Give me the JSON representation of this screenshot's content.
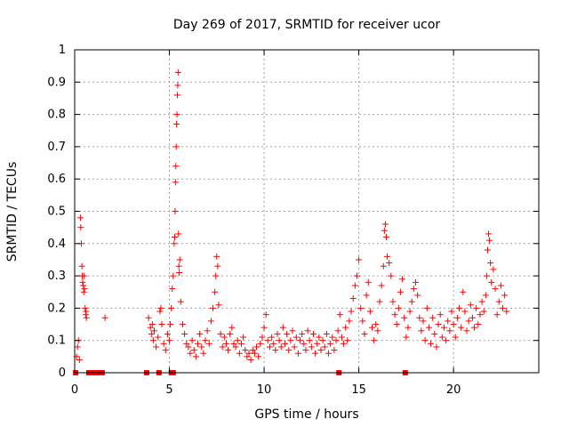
{
  "chart_data": {
    "type": "scatter",
    "title": "Day 269 of 2017, SRMTID for receiver ucor",
    "xlabel": "GPS time / hours",
    "ylabel": "SRMTID / TECUs",
    "xlim": [
      0,
      24.5
    ],
    "ylim": [
      0,
      1
    ],
    "x_ticks": [
      0,
      5,
      10,
      15,
      20
    ],
    "x_tick_labels": [
      "0",
      "5",
      "10",
      "15",
      "20"
    ],
    "y_ticks": [
      0,
      0.1,
      0.2,
      0.3,
      0.4,
      0.5,
      0.6,
      0.7,
      0.8,
      0.9,
      1
    ],
    "y_tick_labels": [
      "0",
      "0.1",
      "0.2",
      "0.3",
      "0.4",
      "0.5",
      "0.6",
      "0.7",
      "0.8",
      "0.9",
      "1"
    ],
    "grid": true,
    "marker": "plus",
    "color": "#ff0000",
    "series": [
      {
        "name": "SRMTID",
        "points": [
          [
            0.1,
            0.05
          ],
          [
            0.15,
            0.08
          ],
          [
            0.2,
            0.1
          ],
          [
            0.25,
            0.04
          ],
          [
            0.3,
            0.48
          ],
          [
            0.32,
            0.45
          ],
          [
            0.35,
            0.4
          ],
          [
            0.38,
            0.33
          ],
          [
            0.4,
            0.3
          ],
          [
            0.42,
            0.28
          ],
          [
            0.45,
            0.27
          ],
          [
            0.48,
            0.25
          ],
          [
            0.5,
            0.3
          ],
          [
            0.52,
            0.26
          ],
          [
            0.55,
            0.2
          ],
          [
            0.58,
            0.18
          ],
          [
            0.6,
            0.19
          ],
          [
            0.62,
            0.17
          ],
          [
            1.6,
            0.17
          ],
          [
            3.9,
            0.17
          ],
          [
            4.0,
            0.14
          ],
          [
            4.05,
            0.12
          ],
          [
            4.1,
            0.15
          ],
          [
            4.15,
            0.1
          ],
          [
            4.2,
            0.13
          ],
          [
            4.3,
            0.08
          ],
          [
            4.4,
            0.11
          ],
          [
            4.5,
            0.19
          ],
          [
            4.55,
            0.2
          ],
          [
            4.6,
            0.15
          ],
          [
            4.7,
            0.09
          ],
          [
            4.8,
            0.07
          ],
          [
            4.9,
            0.12
          ],
          [
            5.0,
            0.1
          ],
          [
            5.05,
            0.15
          ],
          [
            5.1,
            0.2
          ],
          [
            5.15,
            0.26
          ],
          [
            5.2,
            0.3
          ],
          [
            5.25,
            0.4
          ],
          [
            5.28,
            0.42
          ],
          [
            5.3,
            0.5
          ],
          [
            5.32,
            0.59
          ],
          [
            5.34,
            0.64
          ],
          [
            5.36,
            0.7
          ],
          [
            5.38,
            0.77
          ],
          [
            5.4,
            0.8
          ],
          [
            5.42,
            0.86
          ],
          [
            5.44,
            0.89
          ],
          [
            5.46,
            0.93
          ],
          [
            5.48,
            0.43
          ],
          [
            5.5,
            0.33
          ],
          [
            5.52,
            0.31
          ],
          [
            5.55,
            0.35
          ],
          [
            5.6,
            0.22
          ],
          [
            5.7,
            0.15
          ],
          [
            5.8,
            0.12
          ],
          [
            5.9,
            0.09
          ],
          [
            6.0,
            0.08
          ],
          [
            6.1,
            0.06
          ],
          [
            6.2,
            0.1
          ],
          [
            6.3,
            0.07
          ],
          [
            6.4,
            0.05
          ],
          [
            6.5,
            0.09
          ],
          [
            6.6,
            0.12
          ],
          [
            6.7,
            0.08
          ],
          [
            6.8,
            0.06
          ],
          [
            6.9,
            0.1
          ],
          [
            7.0,
            0.13
          ],
          [
            7.1,
            0.09
          ],
          [
            7.2,
            0.16
          ],
          [
            7.3,
            0.2
          ],
          [
            7.4,
            0.25
          ],
          [
            7.45,
            0.3
          ],
          [
            7.5,
            0.36
          ],
          [
            7.55,
            0.33
          ],
          [
            7.6,
            0.21
          ],
          [
            7.7,
            0.12
          ],
          [
            7.8,
            0.08
          ],
          [
            7.9,
            0.11
          ],
          [
            8.0,
            0.09
          ],
          [
            8.1,
            0.07
          ],
          [
            8.2,
            0.12
          ],
          [
            8.3,
            0.14
          ],
          [
            8.4,
            0.09
          ],
          [
            8.5,
            0.08
          ],
          [
            8.6,
            0.1
          ],
          [
            8.7,
            0.06
          ],
          [
            8.8,
            0.09
          ],
          [
            8.9,
            0.11
          ],
          [
            9.0,
            0.07
          ],
          [
            9.1,
            0.05
          ],
          [
            9.2,
            0.06
          ],
          [
            9.3,
            0.04
          ],
          [
            9.4,
            0.07
          ],
          [
            9.5,
            0.06
          ],
          [
            9.6,
            0.08
          ],
          [
            9.7,
            0.05
          ],
          [
            9.8,
            0.09
          ],
          [
            9.9,
            0.11
          ],
          [
            10.0,
            0.14
          ],
          [
            10.1,
            0.18
          ],
          [
            10.2,
            0.1
          ],
          [
            10.3,
            0.08
          ],
          [
            10.4,
            0.11
          ],
          [
            10.5,
            0.09
          ],
          [
            10.6,
            0.07
          ],
          [
            10.7,
            0.12
          ],
          [
            10.8,
            0.1
          ],
          [
            10.9,
            0.08
          ],
          [
            11.0,
            0.14
          ],
          [
            11.1,
            0.09
          ],
          [
            11.2,
            0.12
          ],
          [
            11.3,
            0.07
          ],
          [
            11.4,
            0.1
          ],
          [
            11.5,
            0.13
          ],
          [
            11.6,
            0.08
          ],
          [
            11.7,
            0.11
          ],
          [
            11.8,
            0.06
          ],
          [
            11.9,
            0.1
          ],
          [
            12.0,
            0.12
          ],
          [
            12.1,
            0.09
          ],
          [
            12.2,
            0.07
          ],
          [
            12.3,
            0.13
          ],
          [
            12.4,
            0.1
          ],
          [
            12.5,
            0.08
          ],
          [
            12.6,
            0.12
          ],
          [
            12.7,
            0.06
          ],
          [
            12.8,
            0.09
          ],
          [
            12.9,
            0.11
          ],
          [
            13.0,
            0.07
          ],
          [
            13.1,
            0.1
          ],
          [
            13.2,
            0.08
          ],
          [
            13.3,
            0.12
          ],
          [
            13.4,
            0.06
          ],
          [
            13.5,
            0.09
          ],
          [
            13.6,
            0.11
          ],
          [
            13.7,
            0.07
          ],
          [
            13.8,
            0.1
          ],
          [
            13.9,
            0.13
          ],
          [
            14.0,
            0.18
          ],
          [
            14.1,
            0.11
          ],
          [
            14.2,
            0.09
          ],
          [
            14.3,
            0.14
          ],
          [
            14.4,
            0.1
          ],
          [
            14.5,
            0.16
          ],
          [
            14.6,
            0.19
          ],
          [
            14.7,
            0.23
          ],
          [
            14.8,
            0.27
          ],
          [
            14.9,
            0.3
          ],
          [
            15.0,
            0.35
          ],
          [
            15.1,
            0.2
          ],
          [
            15.2,
            0.16
          ],
          [
            15.3,
            0.12
          ],
          [
            15.4,
            0.24
          ],
          [
            15.5,
            0.28
          ],
          [
            15.6,
            0.19
          ],
          [
            15.7,
            0.14
          ],
          [
            15.8,
            0.1
          ],
          [
            15.9,
            0.15
          ],
          [
            16.0,
            0.13
          ],
          [
            16.1,
            0.22
          ],
          [
            16.2,
            0.27
          ],
          [
            16.3,
            0.33
          ],
          [
            16.35,
            0.44
          ],
          [
            16.4,
            0.46
          ],
          [
            16.45,
            0.42
          ],
          [
            16.5,
            0.36
          ],
          [
            16.6,
            0.34
          ],
          [
            16.7,
            0.3
          ],
          [
            16.8,
            0.22
          ],
          [
            16.9,
            0.18
          ],
          [
            17.0,
            0.15
          ],
          [
            17.1,
            0.2
          ],
          [
            17.2,
            0.25
          ],
          [
            17.3,
            0.29
          ],
          [
            17.4,
            0.17
          ],
          [
            17.5,
            0.11
          ],
          [
            17.6,
            0.14
          ],
          [
            17.7,
            0.19
          ],
          [
            17.8,
            0.22
          ],
          [
            17.9,
            0.26
          ],
          [
            18.0,
            0.28
          ],
          [
            18.1,
            0.24
          ],
          [
            18.2,
            0.17
          ],
          [
            18.3,
            0.13
          ],
          [
            18.4,
            0.16
          ],
          [
            18.5,
            0.1
          ],
          [
            18.6,
            0.2
          ],
          [
            18.7,
            0.14
          ],
          [
            18.8,
            0.09
          ],
          [
            18.9,
            0.17
          ],
          [
            19.0,
            0.12
          ],
          [
            19.1,
            0.08
          ],
          [
            19.2,
            0.15
          ],
          [
            19.3,
            0.18
          ],
          [
            19.4,
            0.11
          ],
          [
            19.5,
            0.14
          ],
          [
            19.6,
            0.1
          ],
          [
            19.7,
            0.16
          ],
          [
            19.8,
            0.13
          ],
          [
            19.9,
            0.19
          ],
          [
            20.0,
            0.15
          ],
          [
            20.1,
            0.11
          ],
          [
            20.2,
            0.17
          ],
          [
            20.3,
            0.2
          ],
          [
            20.4,
            0.14
          ],
          [
            20.5,
            0.25
          ],
          [
            20.6,
            0.19
          ],
          [
            20.7,
            0.13
          ],
          [
            20.8,
            0.16
          ],
          [
            20.9,
            0.21
          ],
          [
            21.0,
            0.17
          ],
          [
            21.1,
            0.14
          ],
          [
            21.2,
            0.2
          ],
          [
            21.3,
            0.15
          ],
          [
            21.4,
            0.18
          ],
          [
            21.5,
            0.22
          ],
          [
            21.6,
            0.19
          ],
          [
            21.7,
            0.24
          ],
          [
            21.75,
            0.3
          ],
          [
            21.8,
            0.38
          ],
          [
            21.85,
            0.43
          ],
          [
            21.9,
            0.41
          ],
          [
            21.95,
            0.34
          ],
          [
            22.0,
            0.28
          ],
          [
            22.1,
            0.32
          ],
          [
            22.2,
            0.26
          ],
          [
            22.3,
            0.18
          ],
          [
            22.4,
            0.22
          ],
          [
            22.5,
            0.27
          ],
          [
            22.6,
            0.2
          ],
          [
            22.7,
            0.24
          ],
          [
            22.8,
            0.19
          ]
        ]
      }
    ],
    "zero_markers_x": [
      0.05,
      0.75,
      0.85,
      0.95,
      1.05,
      1.15,
      1.25,
      1.35,
      1.45,
      3.8,
      4.45,
      5.1,
      5.2,
      13.95,
      17.45
    ]
  }
}
